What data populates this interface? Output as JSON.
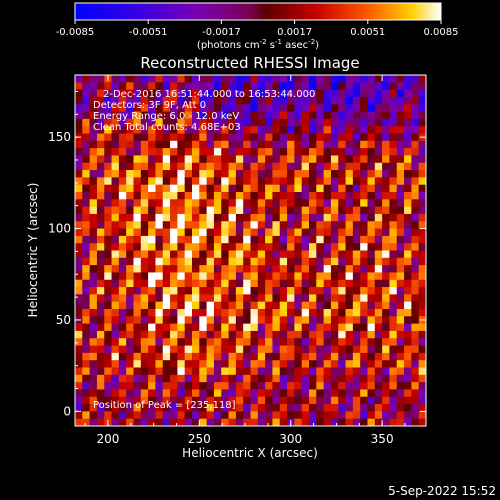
{
  "chart_data": {
    "type": "heatmap",
    "title": "Reconstructed RHESSI Image",
    "xlabel": "Heliocentric X (arcsec)",
    "ylabel": "Heliocentric Y (arcsec)",
    "xlim": [
      182,
      374
    ],
    "ylim": [
      -8,
      184
    ],
    "xticks": [
      200,
      250,
      300,
      350
    ],
    "yticks": [
      0,
      50,
      100,
      150
    ],
    "colorbar": {
      "range": [
        -0.0085,
        0.0085
      ],
      "ticks": [
        "-0.0085",
        "-0.0051",
        "-0.0017",
        "0.0017",
        "0.0051",
        "0.0085"
      ],
      "unit_prefix": "(photons cm",
      "unit_sup1": "-2",
      "unit_mid": " s",
      "unit_sup2": "-1",
      "unit_mid2": " asec",
      "unit_sup3": "-2",
      "unit_suffix": ")"
    },
    "annotations": [
      "2-Dec-2016 16:51:44.000 to 16:53:44.000",
      "Detectors: 3F 9F, Att 0",
      "Energy Range: 6.0 - 12.0 keV",
      "Clean    Total counts: 4.68E+03"
    ],
    "peak_label": "Position of Peak = [235,118]",
    "peak": [
      235,
      118
    ],
    "grid": false
  },
  "footer": {
    "date": "5-Sep-2022 15:52"
  }
}
